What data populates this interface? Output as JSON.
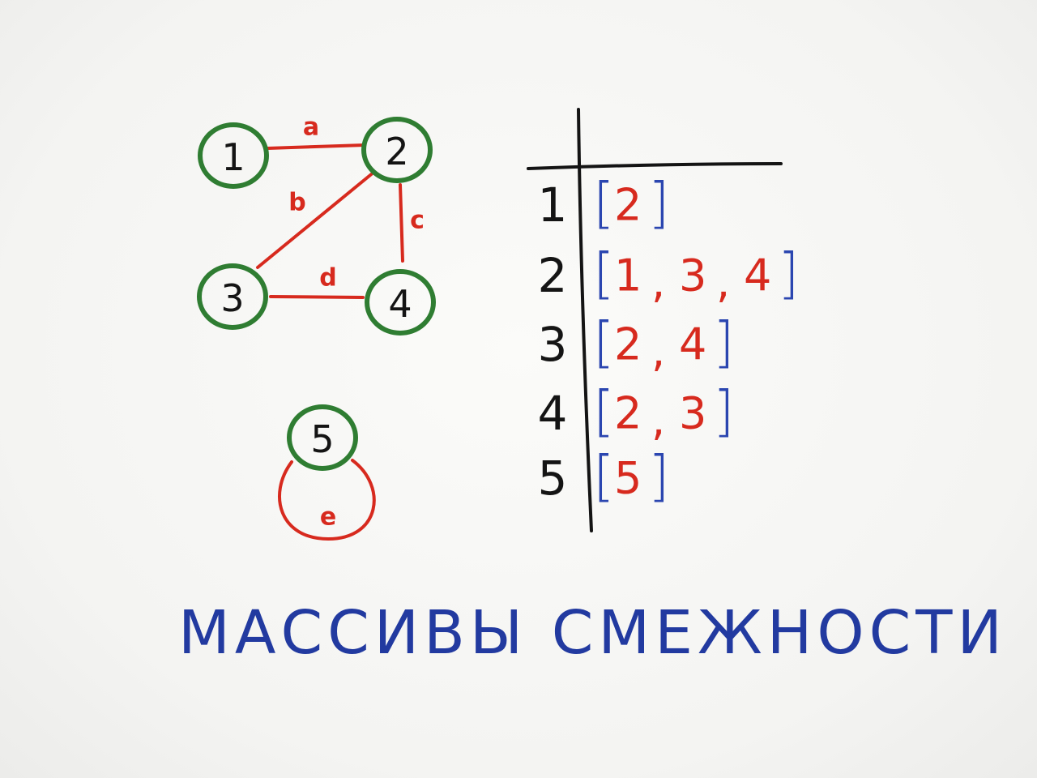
{
  "colors": {
    "node": "#2f7d32",
    "edge": "#d72a1e",
    "ink": "#141414",
    "bracket": "#2b46b0",
    "caption": "#223aa0"
  },
  "graph": {
    "nodes": [
      {
        "id": "1",
        "label": "1"
      },
      {
        "id": "2",
        "label": "2"
      },
      {
        "id": "3",
        "label": "3"
      },
      {
        "id": "4",
        "label": "4"
      },
      {
        "id": "5",
        "label": "5"
      }
    ],
    "edges": [
      {
        "id": "a",
        "label": "a",
        "from": "1",
        "to": "2"
      },
      {
        "id": "b",
        "label": "b",
        "from": "2",
        "to": "3"
      },
      {
        "id": "c",
        "label": "c",
        "from": "2",
        "to": "4"
      },
      {
        "id": "d",
        "label": "d",
        "from": "3",
        "to": "4"
      },
      {
        "id": "e",
        "label": "e",
        "from": "5",
        "to": "5"
      }
    ]
  },
  "adjacency": {
    "rows": [
      {
        "vertex": "1",
        "neighbors": [
          "2"
        ]
      },
      {
        "vertex": "2",
        "neighbors": [
          "1",
          "3",
          "4"
        ]
      },
      {
        "vertex": "3",
        "neighbors": [
          "2",
          "4"
        ]
      },
      {
        "vertex": "4",
        "neighbors": [
          "2",
          "3"
        ]
      },
      {
        "vertex": "5",
        "neighbors": [
          "5"
        ]
      }
    ],
    "separator": ",",
    "open_bracket": "[",
    "close_bracket": "]"
  },
  "caption": "МАССИВЫ СМЕЖНОСТИ"
}
